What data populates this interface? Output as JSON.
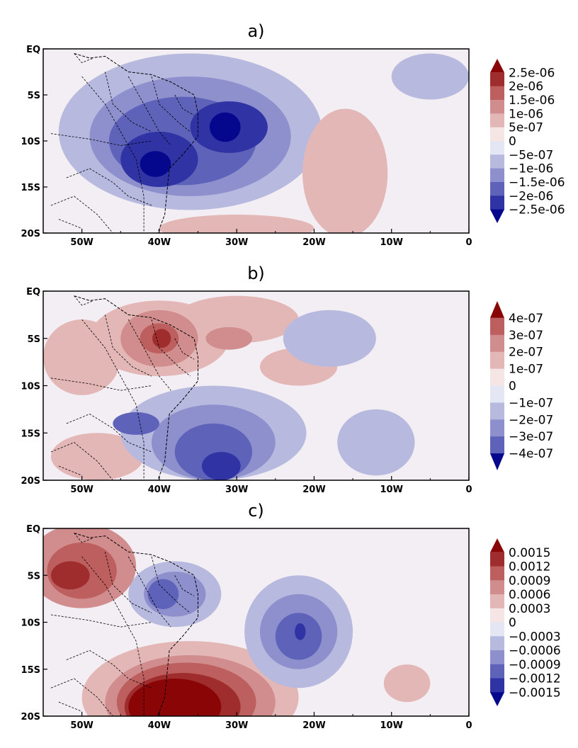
{
  "panels": [
    {
      "title": "a)",
      "levels": [
        "2.5e-06",
        "2e-06",
        "1.5e-06",
        "1e-06",
        "5e-07",
        "0",
        "−5e-07",
        "−1e-06",
        "−1.5e-06",
        "−2e-06",
        "−2.5e-06"
      ],
      "blobs": [
        {
          "lon": -36,
          "lat": -9,
          "rx": 17,
          "ry": 8.5,
          "level": -1
        },
        {
          "lon": -36,
          "lat": -9.5,
          "rx": 13,
          "ry": 6.5,
          "level": -2
        },
        {
          "lon": -37,
          "lat": -10,
          "rx": 9.5,
          "ry": 4.8,
          "level": -3
        },
        {
          "lon": -40,
          "lat": -12,
          "rx": 5,
          "ry": 3,
          "level": -4
        },
        {
          "lon": -31,
          "lat": -8.5,
          "rx": 5,
          "ry": 2.8,
          "level": -4
        },
        {
          "lon": -40.5,
          "lat": -12.5,
          "rx": 2,
          "ry": 1.4,
          "level": -5
        },
        {
          "lon": -31.5,
          "lat": -8.5,
          "rx": 2,
          "ry": 1.6,
          "level": -5
        },
        {
          "lon": -5,
          "lat": -3,
          "rx": 5,
          "ry": 2.5,
          "level": -1
        },
        {
          "lon": -16,
          "lat": -13.5,
          "rx": 5.5,
          "ry": 7,
          "level": 1
        },
        {
          "lon": -30,
          "lat": -19.5,
          "rx": 10,
          "ry": 1.5,
          "level": 1
        }
      ]
    },
    {
      "title": "b)",
      "levels": [
        "4e-07",
        "3e-07",
        "2e-07",
        "1e-07",
        "0",
        "−1e-07",
        "−2e-07",
        "−3e-07",
        "−4e-07"
      ],
      "blobs": [
        {
          "lon": -40,
          "lat": -5,
          "rx": 9,
          "ry": 4,
          "level": 1
        },
        {
          "lon": -50,
          "lat": -7,
          "rx": 5,
          "ry": 4,
          "level": 1
        },
        {
          "lon": -30,
          "lat": -3,
          "rx": 8,
          "ry": 2.5,
          "level": 1
        },
        {
          "lon": -22,
          "lat": -8,
          "rx": 5,
          "ry": 2,
          "level": 1
        },
        {
          "lon": -48,
          "lat": -17.5,
          "rx": 6,
          "ry": 2.5,
          "level": 1
        },
        {
          "lon": -40,
          "lat": -5,
          "rx": 5,
          "ry": 3,
          "level": 2
        },
        {
          "lon": -31,
          "lat": -5,
          "rx": 3,
          "ry": 1.2,
          "level": 2
        },
        {
          "lon": -40,
          "lat": -5,
          "rx": 2.5,
          "ry": 1.6,
          "level": 3
        },
        {
          "lon": -39.7,
          "lat": -5,
          "rx": 1.2,
          "ry": 1,
          "level": 4
        },
        {
          "lon": -33,
          "lat": -15,
          "rx": 12,
          "ry": 5,
          "level": -1
        },
        {
          "lon": -18,
          "lat": -5,
          "rx": 6,
          "ry": 3,
          "level": -1
        },
        {
          "lon": -12,
          "lat": -16,
          "rx": 5,
          "ry": 3.5,
          "level": -1
        },
        {
          "lon": -33,
          "lat": -16,
          "rx": 8,
          "ry": 4,
          "level": -2
        },
        {
          "lon": -33,
          "lat": -17,
          "rx": 5,
          "ry": 3,
          "level": -3
        },
        {
          "lon": -43,
          "lat": -14,
          "rx": 3,
          "ry": 1.2,
          "level": -3
        },
        {
          "lon": -32,
          "lat": -18.5,
          "rx": 2.5,
          "ry": 1.5,
          "level": -4
        }
      ]
    },
    {
      "title": "c)",
      "levels": [
        "0.0015",
        "0.0012",
        "0.0009",
        "0.0006",
        "0.0003",
        "0",
        "−0.0003",
        "−0.0006",
        "−0.0009",
        "−0.0012",
        "−0.0015"
      ],
      "blobs": [
        {
          "lon": -50,
          "lat": -4,
          "rx": 7,
          "ry": 4.5,
          "level": 2
        },
        {
          "lon": -50,
          "lat": -4.5,
          "rx": 4.5,
          "ry": 3,
          "level": 3
        },
        {
          "lon": -51.5,
          "lat": -5,
          "rx": 2.5,
          "ry": 1.5,
          "level": 4
        },
        {
          "lon": -36,
          "lat": -18,
          "rx": 14,
          "ry": 6,
          "level": 1
        },
        {
          "lon": -36,
          "lat": -18.5,
          "rx": 11,
          "ry": 5,
          "level": 2
        },
        {
          "lon": -36.5,
          "lat": -18.5,
          "rx": 9,
          "ry": 4.2,
          "level": 3
        },
        {
          "lon": -37,
          "lat": -19,
          "rx": 7.5,
          "ry": 3.6,
          "level": 4
        },
        {
          "lon": -38,
          "lat": -19,
          "rx": 6,
          "ry": 3,
          "level": 5
        },
        {
          "lon": -8,
          "lat": -16.5,
          "rx": 3,
          "ry": 2,
          "level": 1
        },
        {
          "lon": -22,
          "lat": -11,
          "rx": 7,
          "ry": 6,
          "level": -1
        },
        {
          "lon": -38,
          "lat": -7,
          "rx": 6,
          "ry": 3.5,
          "level": -1
        },
        {
          "lon": -22,
          "lat": -11,
          "rx": 5,
          "ry": 4,
          "level": -2
        },
        {
          "lon": -38,
          "lat": -7,
          "rx": 4,
          "ry": 2.4,
          "level": -2
        },
        {
          "lon": -22,
          "lat": -11.5,
          "rx": 3,
          "ry": 2.5,
          "level": -3
        },
        {
          "lon": -39.5,
          "lat": -7,
          "rx": 2,
          "ry": 1.6,
          "level": -3
        },
        {
          "lon": -21.8,
          "lat": -11,
          "rx": 0.7,
          "ry": 0.9,
          "level": -4
        }
      ]
    }
  ],
  "lon_ticks": [
    "50W",
    "40W",
    "30W",
    "20W",
    "10W",
    "0"
  ],
  "lat_ticks": [
    "EQ",
    "5S",
    "10S",
    "15S",
    "20S"
  ],
  "colors": {
    "pos": [
      "#f5e5e5",
      "#e4b7b7",
      "#d18d8d",
      "#bd5f5f",
      "#a02d2d",
      "#8a0606"
    ],
    "neg": [
      "#e5e6f3",
      "#b7b9df",
      "#8d90cc",
      "#5e62b8",
      "#2f33a3",
      "#05078c"
    ],
    "extend_pos": "#8a0606",
    "extend_neg": "#05078c"
  }
}
